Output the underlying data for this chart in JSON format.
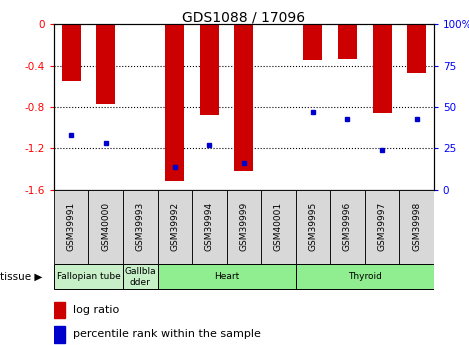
{
  "title": "GDS1088 / 17096",
  "samples": [
    "GSM39991",
    "GSM40000",
    "GSM39993",
    "GSM39992",
    "GSM39994",
    "GSM39999",
    "GSM40001",
    "GSM39995",
    "GSM39996",
    "GSM39997",
    "GSM39998"
  ],
  "log_ratios": [
    -0.55,
    -0.77,
    0.0,
    -1.52,
    -0.88,
    -1.42,
    0.0,
    -0.35,
    -0.34,
    -0.86,
    -0.47
  ],
  "percentile_ranks": [
    33,
    28,
    0,
    14,
    27,
    16,
    0,
    47,
    43,
    24,
    43
  ],
  "ylim_left": [
    -1.6,
    0
  ],
  "ylim_right": [
    0,
    100
  ],
  "left_ticks": [
    0,
    -0.4,
    -0.8,
    -1.2,
    -1.6
  ],
  "right_ticks": [
    0,
    25,
    50,
    75,
    100
  ],
  "bar_color": "#cc0000",
  "dot_color": "#0000cc",
  "bar_width": 0.55,
  "tissue_groups": [
    {
      "label": "Fallopian tube",
      "start": 0,
      "end": 2,
      "color": "#c8f0c8"
    },
    {
      "label": "Gallbla\ndder",
      "start": 2,
      "end": 3,
      "color": "#c8f0c8"
    },
    {
      "label": "Heart",
      "start": 3,
      "end": 7,
      "color": "#90ee90"
    },
    {
      "label": "Thyroid",
      "start": 7,
      "end": 11,
      "color": "#90ee90"
    }
  ]
}
